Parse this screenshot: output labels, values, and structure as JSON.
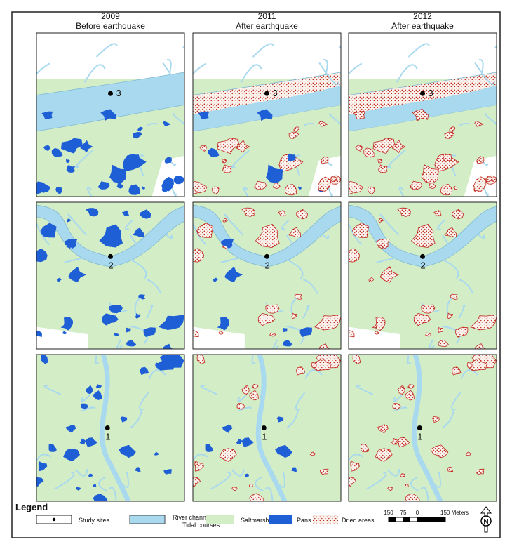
{
  "columns": [
    {
      "year": "2009",
      "subtitle": "Before earthquake"
    },
    {
      "year": "2011",
      "subtitle": "After earthquake"
    },
    {
      "year": "2012",
      "subtitle": "After earthquake"
    }
  ],
  "panels": [
    [
      "3",
      "3",
      "3"
    ],
    [
      "2",
      "2",
      "2"
    ],
    [
      "1",
      "1",
      "1"
    ]
  ],
  "legend": {
    "title": "Legend",
    "items": [
      {
        "label": "Study sites"
      },
      {
        "label_lines": [
          "River channel and",
          "Tidal courses"
        ]
      },
      {
        "label": "Saltmarsh"
      },
      {
        "label": "Pans"
      },
      {
        "label": "Dried areas"
      }
    ]
  },
  "scale_bar": {
    "labels": [
      "150",
      "75",
      "0",
      "150 Meters"
    ]
  },
  "north_arrow": "N"
}
